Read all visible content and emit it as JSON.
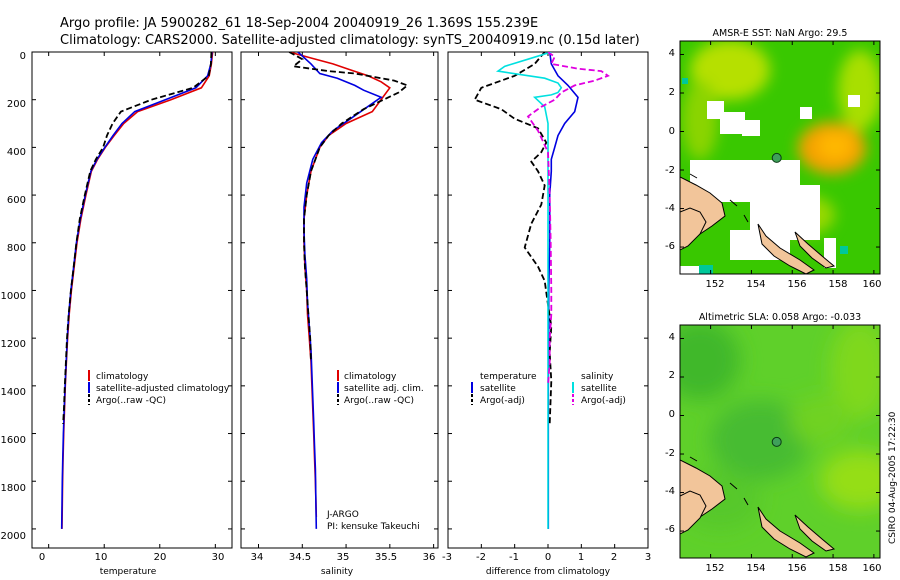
{
  "header": {
    "line1": "Argo profile: JA 5900282_61 18-Sep-2004 20040919_26 1.369S 155.239E",
    "line2": "Climatology: CARS2000. Satellite-adjusted climatology: synTS_20040919.nc (0.15d later)"
  },
  "footer": {
    "credit": "CSIRO 04-Aug-2005 17:22:30"
  },
  "chart_data": [
    {
      "type": "line",
      "title": "",
      "xlabel": "temperature",
      "ylabel": "depth",
      "xlim": [
        -3,
        33
      ],
      "ylim": [
        0,
        2080
      ],
      "y_reversed": true,
      "xticks": [
        "0",
        "10",
        "20",
        "30"
      ],
      "yticks": [
        "0",
        "200",
        "400",
        "600",
        "800",
        "1000",
        "1200",
        "1400",
        "1600",
        "1800",
        "2000"
      ],
      "legend": [
        "climatology",
        "satellite-adjusted climatology",
        "Argo(..raw -QC)"
      ],
      "series": [
        {
          "name": "climatology",
          "color": "#e00000",
          "style": "solid",
          "x": [
            29.5,
            29.3,
            28.9,
            27.5,
            22.0,
            16.0,
            13.5,
            11.8,
            10.2,
            8.8,
            7.7,
            6.7,
            5.8,
            5.1,
            4.6,
            4.1,
            3.7,
            3.4,
            3.2,
            3.0,
            2.85,
            2.7,
            2.6,
            2.5,
            2.45,
            2.4
          ],
          "y": [
            0,
            50,
            100,
            150,
            200,
            250,
            300,
            350,
            400,
            450,
            500,
            600,
            700,
            800,
            900,
            1000,
            1100,
            1200,
            1300,
            1400,
            1500,
            1600,
            1700,
            1800,
            1900,
            2000
          ]
        },
        {
          "name": "satellite-adjusted climatology",
          "color": "#0000e0",
          "style": "solid",
          "x": [
            29.4,
            29.2,
            28.6,
            26.5,
            21.0,
            15.5,
            13.2,
            11.6,
            10.1,
            8.7,
            7.6,
            6.6,
            5.7,
            5.0,
            4.5,
            4.0,
            3.6,
            3.35,
            3.15,
            2.95,
            2.8,
            2.65,
            2.55,
            2.45,
            2.4,
            2.35
          ],
          "y": [
            0,
            50,
            100,
            150,
            200,
            250,
            300,
            350,
            400,
            450,
            500,
            600,
            700,
            800,
            900,
            1000,
            1100,
            1200,
            1300,
            1400,
            1500,
            1600,
            1700,
            1800,
            1900,
            2000
          ]
        },
        {
          "name": "Argo(..raw -QC)",
          "color": "#000000",
          "style": "dashed",
          "x": [
            29.3,
            29.2,
            28.8,
            26.0,
            18.5,
            13.0,
            11.5,
            10.5,
            9.8,
            8.5,
            7.5,
            6.5,
            5.6,
            5.0,
            4.5,
            4.0,
            3.6,
            3.3,
            3.1,
            2.9,
            2.75,
            2.6
          ],
          "y": [
            0,
            50,
            100,
            150,
            200,
            250,
            300,
            350,
            400,
            450,
            500,
            600,
            700,
            800,
            900,
            1000,
            1100,
            1200,
            1300,
            1400,
            1500,
            1560
          ]
        }
      ]
    },
    {
      "type": "line",
      "title": "",
      "xlabel": "salinity",
      "ylabel": "depth",
      "xlim": [
        33.8,
        36.05
      ],
      "ylim": [
        0,
        2080
      ],
      "y_reversed": true,
      "xticks": [
        "34",
        "34.5",
        "35",
        "35.5",
        "36"
      ],
      "legend": [
        "climatology",
        "satellite adj. clim.",
        "Argo(..raw -QC)"
      ],
      "annotations": [
        "J-ARGO",
        "PI: kensuke Takeuchi"
      ],
      "series": [
        {
          "name": "climatology",
          "color": "#e00000",
          "style": "solid",
          "x": [
            34.35,
            34.6,
            34.85,
            35.05,
            35.25,
            35.4,
            35.5,
            35.3,
            35.0,
            34.8,
            34.7,
            34.6,
            34.55,
            34.52,
            34.52,
            34.53,
            34.55,
            34.56,
            34.58,
            34.6,
            34.61,
            34.62,
            34.63,
            34.64,
            34.65,
            34.66
          ],
          "y": [
            0,
            25,
            50,
            75,
            100,
            125,
            150,
            250,
            300,
            350,
            400,
            500,
            600,
            700,
            800,
            900,
            1000,
            1100,
            1200,
            1300,
            1400,
            1500,
            1600,
            1700,
            1800,
            1950
          ]
        },
        {
          "name": "satellite adj. clim.",
          "color": "#0000e0",
          "style": "solid",
          "x": [
            34.45,
            34.6,
            34.7,
            34.9,
            35.1,
            35.2,
            35.4,
            35.05,
            34.85,
            34.72,
            34.62,
            34.55,
            34.52,
            34.52,
            34.53,
            34.55,
            34.56,
            34.58,
            34.6,
            34.61,
            34.62,
            34.63,
            34.64,
            34.65,
            34.66
          ],
          "y": [
            0,
            50,
            90,
            110,
            140,
            160,
            190,
            280,
            330,
            380,
            450,
            550,
            650,
            750,
            850,
            950,
            1050,
            1150,
            1250,
            1350,
            1450,
            1550,
            1650,
            1750,
            2000
          ]
        },
        {
          "name": "Argo(..raw -QC)",
          "color": "#000000",
          "style": "dashed",
          "x": [
            34.35,
            34.5,
            34.4,
            34.8,
            35.1,
            35.4,
            35.55,
            35.7,
            35.6,
            35.2,
            34.95,
            34.8,
            34.7,
            34.6,
            34.55,
            34.52,
            34.52,
            34.53,
            34.55,
            34.57,
            34.59,
            34.6
          ],
          "y": [
            0,
            30,
            60,
            80,
            90,
            110,
            120,
            140,
            170,
            240,
            300,
            350,
            400,
            500,
            600,
            700,
            800,
            900,
            1000,
            1100,
            1200,
            1300
          ]
        }
      ]
    },
    {
      "type": "line",
      "title": "",
      "xlabel": "difference from climatology",
      "ylabel": "depth",
      "xlim": [
        -3,
        3
      ],
      "ylim": [
        0,
        2080
      ],
      "y_reversed": true,
      "xticks": [
        "-3",
        "-2",
        "-1",
        "0",
        "1",
        "2",
        "3"
      ],
      "legend_left_title": "temperature",
      "legend_right_title": "salinity",
      "legend": [
        "satellite",
        "Argo(-adj)",
        "satellite",
        "Argo(-adj)"
      ],
      "series": [
        {
          "name": "temperature satellite",
          "color": "#0000e0",
          "style": "solid",
          "x": [
            0.05,
            0.1,
            0.3,
            0.6,
            0.9,
            0.8,
            0.5,
            0.3,
            0.2,
            0.1,
            0.1,
            0.05,
            0.05,
            0.02,
            0.02,
            0.01,
            0.01,
            0.01
          ],
          "y": [
            0,
            50,
            100,
            140,
            190,
            250,
            300,
            350,
            400,
            450,
            500,
            600,
            800,
            1000,
            1200,
            1400,
            1700,
            2000
          ]
        },
        {
          "name": "temperature Argo(-adj)",
          "color": "#000000",
          "style": "dashed",
          "x": [
            -0.1,
            -0.4,
            -1.0,
            -2.0,
            -2.2,
            -1.4,
            -1.0,
            -0.3,
            -0.05,
            -0.2,
            -0.5,
            -0.3,
            -0.1,
            -0.2,
            -0.5,
            -0.7,
            -0.3,
            -0.1,
            0.0,
            0.1,
            0.05,
            0.1,
            0.05
          ],
          "y": [
            0,
            50,
            100,
            150,
            200,
            240,
            280,
            320,
            380,
            420,
            460,
            500,
            560,
            640,
            720,
            820,
            900,
            960,
            1060,
            1150,
            1260,
            1380,
            1560
          ]
        },
        {
          "name": "salinity satellite",
          "color": "#00e0e0",
          "style": "solid",
          "x": [
            0.1,
            -0.6,
            -1.3,
            -1.5,
            -0.8,
            -0.1,
            0.3,
            0.4,
            0.3,
            0.1,
            -0.4,
            -0.1,
            0.0,
            0.0,
            0.0,
            0.0,
            0.0,
            0.0
          ],
          "y": [
            0,
            30,
            60,
            80,
            95,
            110,
            130,
            150,
            170,
            180,
            190,
            230,
            300,
            500,
            800,
            1200,
            1600,
            2000
          ]
        },
        {
          "name": "salinity Argo(-adj)",
          "color": "#e000e0",
          "style": "dashed",
          "x": [
            0.0,
            0.2,
            0.1,
            0.9,
            1.6,
            1.8,
            1.4,
            0.8,
            0.4,
            0.2,
            -0.2,
            -0.6,
            -0.3,
            0.0,
            0.05,
            0.08,
            0.1,
            0.1,
            0.05,
            0.05,
            0.0
          ],
          "y": [
            0,
            20,
            50,
            70,
            80,
            100,
            120,
            140,
            170,
            200,
            230,
            270,
            330,
            420,
            600,
            800,
            1000,
            1100,
            1200,
            1300,
            1400
          ]
        }
      ]
    },
    {
      "type": "heatmap",
      "title": "AMSR-E SST: NaN Argo: 29.5",
      "xlim": [
        150.5,
        160.3
      ],
      "ylim": [
        -7.4,
        4.7
      ],
      "xticks": [
        "152",
        "154",
        "156",
        "158",
        "160"
      ],
      "yticks": [
        "-6",
        "-4",
        "-2",
        "0",
        "2",
        "4"
      ],
      "marker": {
        "lon": 155.239,
        "lat": -1.369
      }
    },
    {
      "type": "heatmap",
      "title": "Altimetric SLA: 0.058 Argo: -0.033",
      "xlim": [
        150.5,
        160.3
      ],
      "ylim": [
        -7.4,
        4.7
      ],
      "xticks": [
        "152",
        "154",
        "156",
        "158",
        "160"
      ],
      "yticks": [
        "-6",
        "-4",
        "-2",
        "0",
        "2",
        "4"
      ],
      "marker": {
        "lon": 155.239,
        "lat": -1.369
      }
    }
  ]
}
